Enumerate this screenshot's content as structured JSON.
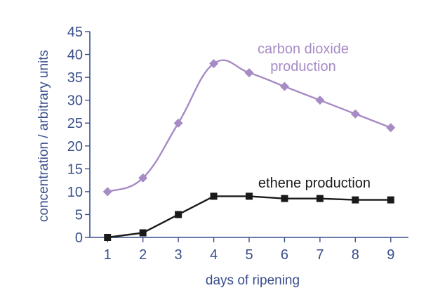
{
  "chart_data": {
    "type": "line",
    "title": "",
    "xlabel": "days of ripening",
    "ylabel": "concentration / arbitrary units",
    "x": [
      1,
      2,
      3,
      4,
      5,
      6,
      7,
      8,
      9
    ],
    "xlim": [
      0.5,
      9.5
    ],
    "ylim": [
      0,
      45
    ],
    "xticks": [
      "1",
      "2",
      "3",
      "4",
      "5",
      "6",
      "7",
      "8",
      "9"
    ],
    "yticks": [
      "0",
      "5",
      "10",
      "15",
      "20",
      "25",
      "30",
      "35",
      "40",
      "45"
    ],
    "grid": false,
    "series": [
      {
        "name": "carbon dioxide production",
        "label_lines": [
          "carbon dioxide",
          "production"
        ],
        "values": [
          10,
          13,
          25,
          38,
          36,
          33,
          30,
          27,
          24
        ],
        "color": "#a68bc4",
        "marker": "diamond"
      },
      {
        "name": "ethene production",
        "label_lines": [
          "ethene production"
        ],
        "values": [
          0,
          1,
          5,
          9,
          9,
          8.5,
          8.5,
          8.2,
          8.2
        ],
        "color": "#1a1a1a",
        "marker": "square"
      }
    ],
    "axis_color": "#3a4f8a"
  }
}
